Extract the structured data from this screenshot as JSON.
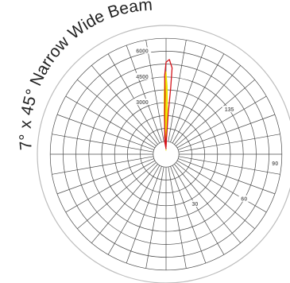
{
  "chart_data": {
    "type": "polar",
    "title": "7° x 45° Narrow Wide Beam",
    "units": "",
    "r_max": 7000,
    "radial_ticks": [
      1500,
      3000,
      4500,
      6000
    ],
    "radial_tick_labels": [
      "3000",
      "4500",
      "6000"
    ],
    "angle_tick_labels": [
      "30",
      "60",
      "90",
      "135"
    ],
    "angle_step_deg": 10,
    "series": [
      {
        "color": "#d4141c",
        "fill": "none",
        "points": [
          [
            -6,
            650
          ],
          [
            -3,
            1400
          ],
          [
            -2,
            2200
          ],
          [
            -1,
            3200
          ],
          [
            -1,
            4300
          ],
          [
            0,
            5000
          ],
          [
            2,
            5150
          ],
          [
            4,
            4700
          ],
          [
            4,
            3600
          ],
          [
            3,
            2200
          ],
          [
            2,
            1000
          ],
          [
            0,
            400
          ],
          [
            -3,
            1300
          ],
          [
            -5,
            900
          ],
          [
            0,
            300
          ]
        ]
      },
      {
        "color": "#e8e000",
        "fill": "#f2ea00",
        "points": [
          [
            -4,
            700
          ],
          [
            -3,
            2000
          ],
          [
            -2,
            3200
          ],
          [
            -1,
            4200
          ],
          [
            0,
            4500
          ],
          [
            1,
            3700
          ],
          [
            2,
            2400
          ],
          [
            1,
            900
          ],
          [
            0,
            300
          ],
          [
            -2,
            1300
          ],
          [
            -4,
            1000
          ],
          [
            0,
            200
          ]
        ]
      }
    ],
    "grid": true
  }
}
